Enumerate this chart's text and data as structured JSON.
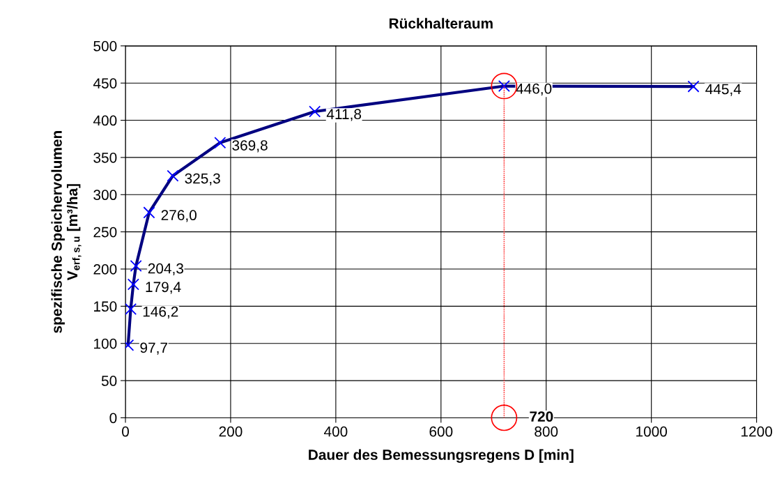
{
  "chart_data": {
    "type": "line",
    "title": "Rückhalteraum",
    "xlabel": "Dauer des Bemessungsregens D [min]",
    "ylabel": "spezifische Speichervolumen\nV$_{erf,s,u}$ [m³/ha]",
    "series": [
      {
        "type": "line",
        "color": "#000080",
        "marker": "cross",
        "line_style": "solid",
        "x": [
          5,
          10,
          15,
          20,
          45,
          90,
          180,
          360,
          720,
          1080
        ],
        "values": [
          97.7,
          146.2,
          179.4,
          204.3,
          276.0,
          325.3,
          369.8,
          411.8,
          446.0,
          445.4
        ],
        "value_labels": [
          "97,7",
          "146,2",
          "179,4",
          "204,3",
          "276,0",
          "325,3",
          "369,8",
          "411,8",
          "446,0",
          "445,4"
        ]
      },
      {
        "type": "line",
        "color": "#ff0000",
        "marker": "circle",
        "line_style": "dotted",
        "x": [
          720,
          720
        ],
        "values": [
          446.0,
          0
        ]
      }
    ],
    "annotations": [
      {
        "text": "720",
        "x": 720,
        "y": 0
      }
    ],
    "xlim": [
      0,
      1200
    ],
    "xticks": [
      0,
      200,
      400,
      600,
      800,
      1000,
      1200
    ],
    "ylim": [
      0,
      500
    ],
    "yticks": [
      0,
      50,
      100,
      150,
      200,
      250,
      300,
      350,
      400,
      450,
      500
    ],
    "grid": true
  }
}
